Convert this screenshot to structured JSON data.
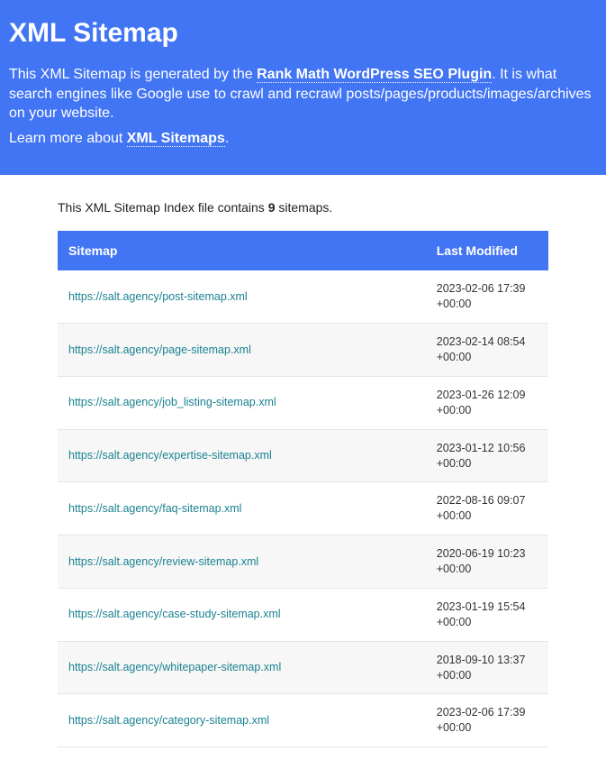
{
  "header": {
    "title": "XML Sitemap",
    "intro_before_link": "This XML Sitemap is generated by the ",
    "intro_link_text": "Rank Math WordPress SEO Plugin",
    "intro_after_link": ". It is what search engines like Google use to crawl and recrawl posts/pages/products/images/archives on your website.",
    "learn_before": "Learn more about ",
    "learn_link_text": "XML Sitemaps",
    "learn_after": "."
  },
  "summary": {
    "before_count": "This XML Sitemap Index file contains ",
    "count": "9",
    "after_count": " sitemaps."
  },
  "columns": {
    "sitemap": "Sitemap",
    "last_modified": "Last Modified"
  },
  "rows": [
    {
      "url": "https://salt.agency/post-sitemap.xml",
      "modified": "2023-02-06 17:39 +00:00"
    },
    {
      "url": "https://salt.agency/page-sitemap.xml",
      "modified": "2023-02-14 08:54 +00:00"
    },
    {
      "url": "https://salt.agency/job_listing-sitemap.xml",
      "modified": "2023-01-26 12:09 +00:00"
    },
    {
      "url": "https://salt.agency/expertise-sitemap.xml",
      "modified": "2023-01-12 10:56 +00:00"
    },
    {
      "url": "https://salt.agency/faq-sitemap.xml",
      "modified": "2022-08-16 09:07 +00:00"
    },
    {
      "url": "https://salt.agency/review-sitemap.xml",
      "modified": "2020-06-19 10:23 +00:00"
    },
    {
      "url": "https://salt.agency/case-study-sitemap.xml",
      "modified": "2023-01-19 15:54 +00:00"
    },
    {
      "url": "https://salt.agency/whitepaper-sitemap.xml",
      "modified": "2018-09-10 13:37 +00:00"
    },
    {
      "url": "https://salt.agency/category-sitemap.xml",
      "modified": "2023-02-06 17:39 +00:00"
    }
  ]
}
